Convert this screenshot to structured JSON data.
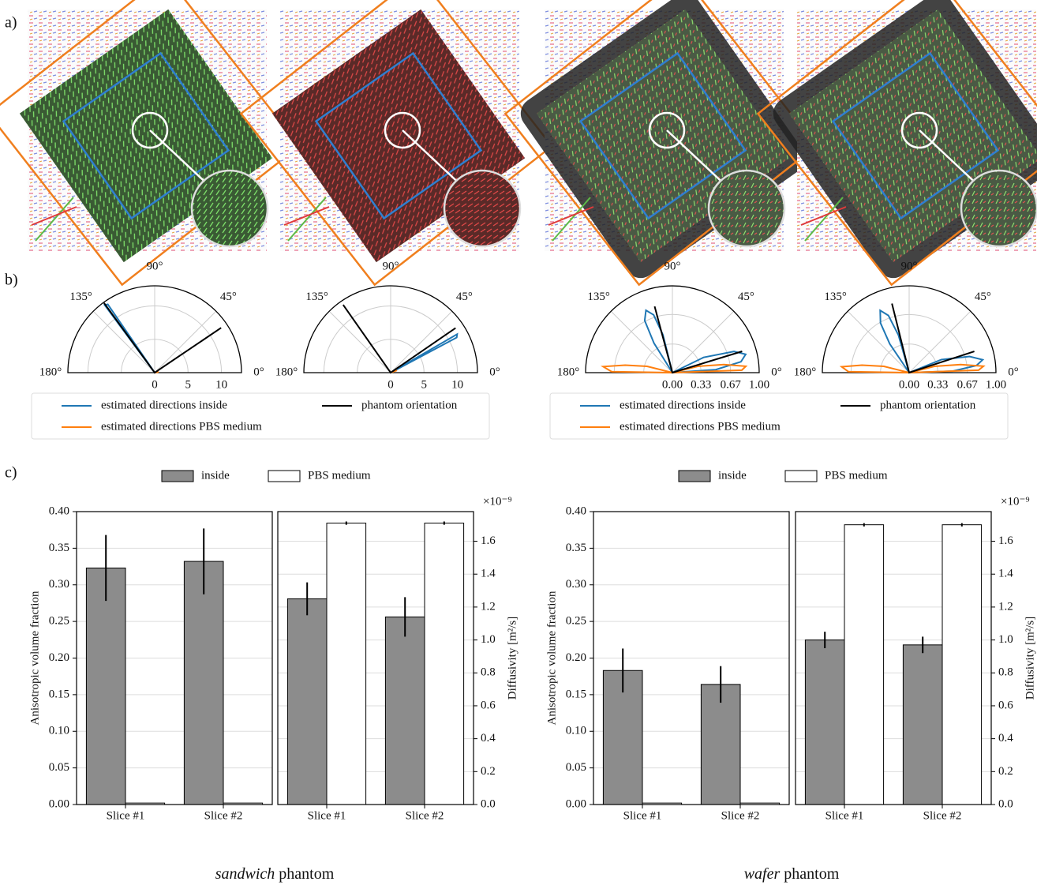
{
  "panel_labels": [
    "a)",
    "b)",
    "c)"
  ],
  "chart_data": [
    {
      "type": "polar",
      "thetalim": [
        0,
        180
      ],
      "thetaticks": [
        {
          "value": 0,
          "label": "0°"
        },
        {
          "value": 45,
          "label": "45°"
        },
        {
          "value": 90,
          "label": "90°"
        },
        {
          "value": 135,
          "label": "135°"
        },
        {
          "value": 180,
          "label": "180°"
        }
      ],
      "rlim": [
        0,
        13
      ],
      "rticks": [
        0,
        5,
        10
      ],
      "series": [
        {
          "color": "#1f77b4",
          "theta": [
            0,
            124.5,
            126.5,
            0
          ],
          "r": [
            0,
            12.4,
            12.6,
            0
          ]
        },
        {
          "color": "#ff7f0e",
          "theta": [
            0,
            10,
            0
          ],
          "r": [
            0,
            0.6,
            0
          ]
        },
        {
          "color": "#000000",
          "theta": [
            126,
            0,
            34
          ],
          "r": [
            12.9,
            0,
            12
          ]
        }
      ],
      "legend": {
        "items": [
          {
            "name": "estimated directions inside",
            "color": "#1f77b4"
          },
          {
            "name": "phantom orientation",
            "color": "#000000"
          },
          {
            "name": "estimated directions PBS medium",
            "color": "#ff7f0e"
          }
        ]
      }
    },
    {
      "type": "polar",
      "thetalim": [
        0,
        180
      ],
      "thetaticks": [
        {
          "value": 0,
          "label": "0°"
        },
        {
          "value": 45,
          "label": "45°"
        },
        {
          "value": 90,
          "label": "90°"
        },
        {
          "value": 135,
          "label": "135°"
        },
        {
          "value": 180,
          "label": "180°"
        }
      ],
      "rlim": [
        0,
        13
      ],
      "rticks": [
        0,
        5,
        10
      ],
      "series": [
        {
          "color": "#1f77b4",
          "theta": [
            0,
            28,
            30,
            0
          ],
          "r": [
            0,
            11.2,
            11.5,
            0
          ]
        },
        {
          "color": "#ff7f0e",
          "theta": [
            0,
            20,
            0
          ],
          "r": [
            0,
            1,
            0
          ]
        },
        {
          "color": "#000000",
          "theta": [
            125,
            0,
            34.5
          ],
          "r": [
            12.4,
            0,
            11.8
          ]
        }
      ]
    },
    {
      "type": "polar",
      "thetalim": [
        0,
        180
      ],
      "thetaticks": [
        {
          "value": 0,
          "label": "0°"
        },
        {
          "value": 45,
          "label": "45°"
        },
        {
          "value": 90,
          "label": "90°"
        },
        {
          "value": 135,
          "label": "135°"
        },
        {
          "value": 180,
          "label": "180°"
        }
      ],
      "rlim": [
        0,
        1
      ],
      "rticks": [
        {
          "value": 0,
          "label": "0.00"
        },
        0.33,
        0.67,
        {
          "value": 1,
          "label": "1.00"
        }
      ],
      "series": [
        {
          "color": "#1f77b4",
          "theta": [
            0,
            104,
            108,
            113,
            118,
            122,
            0,
            4,
            9,
            14,
            19,
            26,
            0
          ],
          "r": [
            0,
            0.45,
            0.7,
            0.78,
            0.68,
            0.4,
            0,
            0.5,
            0.8,
            0.87,
            0.75,
            0.4,
            0
          ]
        },
        {
          "color": "#ff7f0e",
          "theta": [
            0,
            166,
            171,
            175,
            179,
            0,
            2,
            5,
            9,
            14,
            0
          ],
          "r": [
            0,
            0.3,
            0.55,
            0.8,
            0.7,
            0,
            0.8,
            0.85,
            0.6,
            0.3,
            0
          ]
        },
        {
          "color": "#000000",
          "theta": [
            105,
            0,
            17
          ],
          "r": [
            0.79,
            0,
            0.84
          ]
        }
      ],
      "legend": {
        "items": [
          {
            "name": "estimated directions inside",
            "color": "#1f77b4"
          },
          {
            "name": "phantom orientation",
            "color": "#000000"
          },
          {
            "name": "estimated directions PBS medium",
            "color": "#ff7f0e"
          }
        ]
      }
    },
    {
      "type": "polar",
      "thetalim": [
        0,
        180
      ],
      "thetaticks": [
        {
          "value": 0,
          "label": "0°"
        },
        {
          "value": 45,
          "label": "45°"
        },
        {
          "value": 90,
          "label": "90°"
        },
        {
          "value": 135,
          "label": "135°"
        },
        {
          "value": 180,
          "label": "180°"
        }
      ],
      "rlim": [
        0,
        1
      ],
      "rticks": [
        {
          "value": 0,
          "label": "0.00"
        },
        0.33,
        0.67,
        {
          "value": 1,
          "label": "1.00"
        }
      ],
      "series": [
        {
          "color": "#1f77b4",
          "theta": [
            0,
            106,
            110,
            115,
            120,
            124,
            0,
            2,
            6,
            10,
            15,
            22,
            0
          ],
          "r": [
            0,
            0.45,
            0.7,
            0.79,
            0.66,
            0.4,
            0,
            0.5,
            0.78,
            0.86,
            0.72,
            0.4,
            0
          ]
        },
        {
          "color": "#ff7f0e",
          "theta": [
            0,
            166,
            171,
            175,
            179,
            0,
            2,
            5,
            9,
            14,
            0
          ],
          "r": [
            0,
            0.3,
            0.55,
            0.78,
            0.7,
            0,
            0.8,
            0.86,
            0.6,
            0.3,
            0
          ]
        },
        {
          "color": "#000000",
          "theta": [
            104,
            0,
            18
          ],
          "r": [
            0.82,
            0,
            0.79
          ]
        }
      ]
    },
    {
      "type": "bar",
      "categories": [
        "Slice #1",
        "Slice #2"
      ],
      "ylabel": "Anisotropic volume fraction",
      "ylim": [
        0,
        0.4
      ],
      "yticks": [
        {
          "value": 0,
          "label": "0.00"
        },
        0.05,
        {
          "value": 0.1,
          "label": "0.10"
        },
        0.15,
        {
          "value": 0.2,
          "label": "0.20"
        },
        0.25,
        {
          "value": 0.3,
          "label": "0.30"
        },
        0.35,
        {
          "value": 0.4,
          "label": "0.40"
        }
      ],
      "y_axis_position": "left",
      "grid": true,
      "series": [
        {
          "color": "#8c8c8c",
          "values": [
            0.323,
            0.332
          ],
          "errors": [
            0.045,
            0.045
          ]
        },
        {
          "color": "#ffffff",
          "values": [
            0.002,
            0.002
          ]
        }
      ],
      "legend": {
        "items": [
          {
            "name": "inside",
            "color": "#8c8c8c"
          },
          {
            "name": "PBS medium",
            "color": "#ffffff"
          }
        ]
      },
      "xlabel": [
        "sandwich",
        "phantom"
      ]
    },
    {
      "type": "bar",
      "categories": [
        "Slice #1",
        "Slice #2"
      ],
      "ylabel": "Diffusivity [m²/s]",
      "offset_label": "×10⁻⁹",
      "ylim": [
        0,
        1.78
      ],
      "yticks": [
        {
          "value": 0,
          "label": "0.0"
        },
        0.2,
        0.4,
        0.6,
        0.8,
        {
          "value": 1,
          "label": "1.0"
        },
        1.2,
        1.4,
        1.6
      ],
      "y_axis_position": "right",
      "grid": true,
      "series": [
        {
          "color": "#8c8c8c",
          "values": [
            1.25,
            1.14
          ],
          "errors": [
            0.1,
            0.12
          ]
        },
        {
          "color": "#ffffff",
          "values": [
            1.71,
            1.71
          ],
          "errors": [
            0.01,
            0.01
          ]
        }
      ]
    },
    {
      "type": "bar",
      "categories": [
        "Slice #1",
        "Slice #2"
      ],
      "ylabel": "Anisotropic volume fraction",
      "ylim": [
        0,
        0.4
      ],
      "yticks": [
        {
          "value": 0,
          "label": "0.00"
        },
        0.05,
        {
          "value": 0.1,
          "label": "0.10"
        },
        0.15,
        {
          "value": 0.2,
          "label": "0.20"
        },
        0.25,
        {
          "value": 0.3,
          "label": "0.30"
        },
        0.35,
        {
          "value": 0.4,
          "label": "0.40"
        }
      ],
      "y_axis_position": "left",
      "grid": true,
      "series": [
        {
          "color": "#8c8c8c",
          "values": [
            0.183,
            0.164
          ],
          "errors": [
            0.03,
            0.025
          ]
        },
        {
          "color": "#ffffff",
          "values": [
            0.002,
            0.002
          ]
        }
      ],
      "legend": {
        "items": [
          {
            "name": "inside",
            "color": "#8c8c8c"
          },
          {
            "name": "PBS medium",
            "color": "#ffffff"
          }
        ]
      },
      "xlabel": [
        "wafer",
        "phantom"
      ]
    },
    {
      "type": "bar",
      "categories": [
        "Slice #1",
        "Slice #2"
      ],
      "ylabel": "Diffusivity [m²/s]",
      "offset_label": "×10⁻⁹",
      "ylim": [
        0,
        1.78
      ],
      "yticks": [
        {
          "value": 0,
          "label": "0.0"
        },
        0.2,
        0.4,
        0.6,
        0.8,
        {
          "value": 1,
          "label": "1.0"
        },
        1.2,
        1.4,
        1.6
      ],
      "y_axis_position": "right",
      "grid": true,
      "series": [
        {
          "color": "#8c8c8c",
          "values": [
            1.0,
            0.97
          ],
          "errors": [
            0.05,
            0.05
          ]
        },
        {
          "color": "#ffffff",
          "values": [
            1.7,
            1.7
          ],
          "errors": [
            0.01,
            0.01
          ]
        }
      ]
    }
  ]
}
